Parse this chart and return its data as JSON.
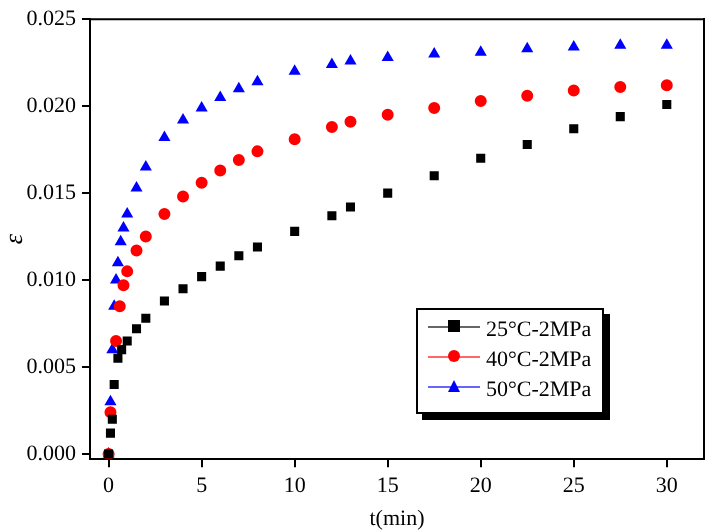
{
  "chart_data": {
    "type": "scatter",
    "xlabel": "t(min)",
    "ylabel": "ε",
    "xlim": [
      -1,
      32
    ],
    "xticks": [
      0,
      5,
      10,
      15,
      20,
      25,
      30
    ],
    "ylim": [
      -0.0003,
      0.025
    ],
    "yticks": [
      {
        "value": 0,
        "label": "0.000"
      },
      {
        "value": 0.005,
        "label": "0.005"
      },
      {
        "value": 0.01,
        "label": "0.010"
      },
      {
        "value": 0.015,
        "label": "0.015"
      },
      {
        "value": 0.02,
        "label": "0.020"
      },
      {
        "value": 0.025,
        "label": "0.025"
      }
    ],
    "legend": "bottom right",
    "grid": false,
    "series": [
      {
        "name": "25°C-2MPa",
        "color": "#000000",
        "marker": "square",
        "x": [
          0,
          0.1,
          0.2,
          0.3,
          0.5,
          0.7,
          1,
          1.5,
          2,
          3,
          4,
          5,
          6,
          7,
          8,
          10,
          12,
          13,
          15,
          17.5,
          20,
          22.5,
          25,
          27.5,
          30
        ],
        "values": [
          0,
          0.0012,
          0.002,
          0.004,
          0.0055,
          0.006,
          0.0065,
          0.0072,
          0.0078,
          0.0088,
          0.0095,
          0.0102,
          0.0108,
          0.0114,
          0.0119,
          0.0128,
          0.0137,
          0.0142,
          0.015,
          0.016,
          0.017,
          0.0178,
          0.0187,
          0.0194,
          0.0201
        ]
      },
      {
        "name": "40°C-2MPa",
        "color": "#ff0000",
        "marker": "circle",
        "x": [
          0,
          0.1,
          0.4,
          0.6,
          0.8,
          1,
          1.5,
          2,
          3,
          4,
          5,
          6,
          7,
          8,
          10,
          12,
          13,
          15,
          17.5,
          20,
          22.5,
          25,
          27.5,
          30
        ],
        "values": [
          0,
          0.0024,
          0.0065,
          0.0085,
          0.0097,
          0.0105,
          0.0117,
          0.0125,
          0.0138,
          0.0148,
          0.0156,
          0.0163,
          0.0169,
          0.0174,
          0.0181,
          0.0188,
          0.0191,
          0.0195,
          0.0199,
          0.0203,
          0.0206,
          0.0209,
          0.0211,
          0.0212
        ]
      },
      {
        "name": "50°C-2MPa",
        "color": "#0000ff",
        "marker": "triangle",
        "x": [
          0,
          0.1,
          0.2,
          0.3,
          0.4,
          0.5,
          0.65,
          0.8,
          1,
          1.5,
          2,
          3,
          4,
          5,
          6,
          7,
          8,
          10,
          12,
          13,
          15,
          17.5,
          20,
          22.5,
          25,
          27.5,
          30
        ],
        "values": [
          0,
          0.003,
          0.006,
          0.0085,
          0.01,
          0.011,
          0.0122,
          0.013,
          0.0138,
          0.0153,
          0.0165,
          0.0182,
          0.0192,
          0.0199,
          0.0205,
          0.021,
          0.0214,
          0.022,
          0.0224,
          0.0226,
          0.0228,
          0.023,
          0.0231,
          0.0233,
          0.0234,
          0.0235,
          0.0235
        ]
      }
    ]
  }
}
